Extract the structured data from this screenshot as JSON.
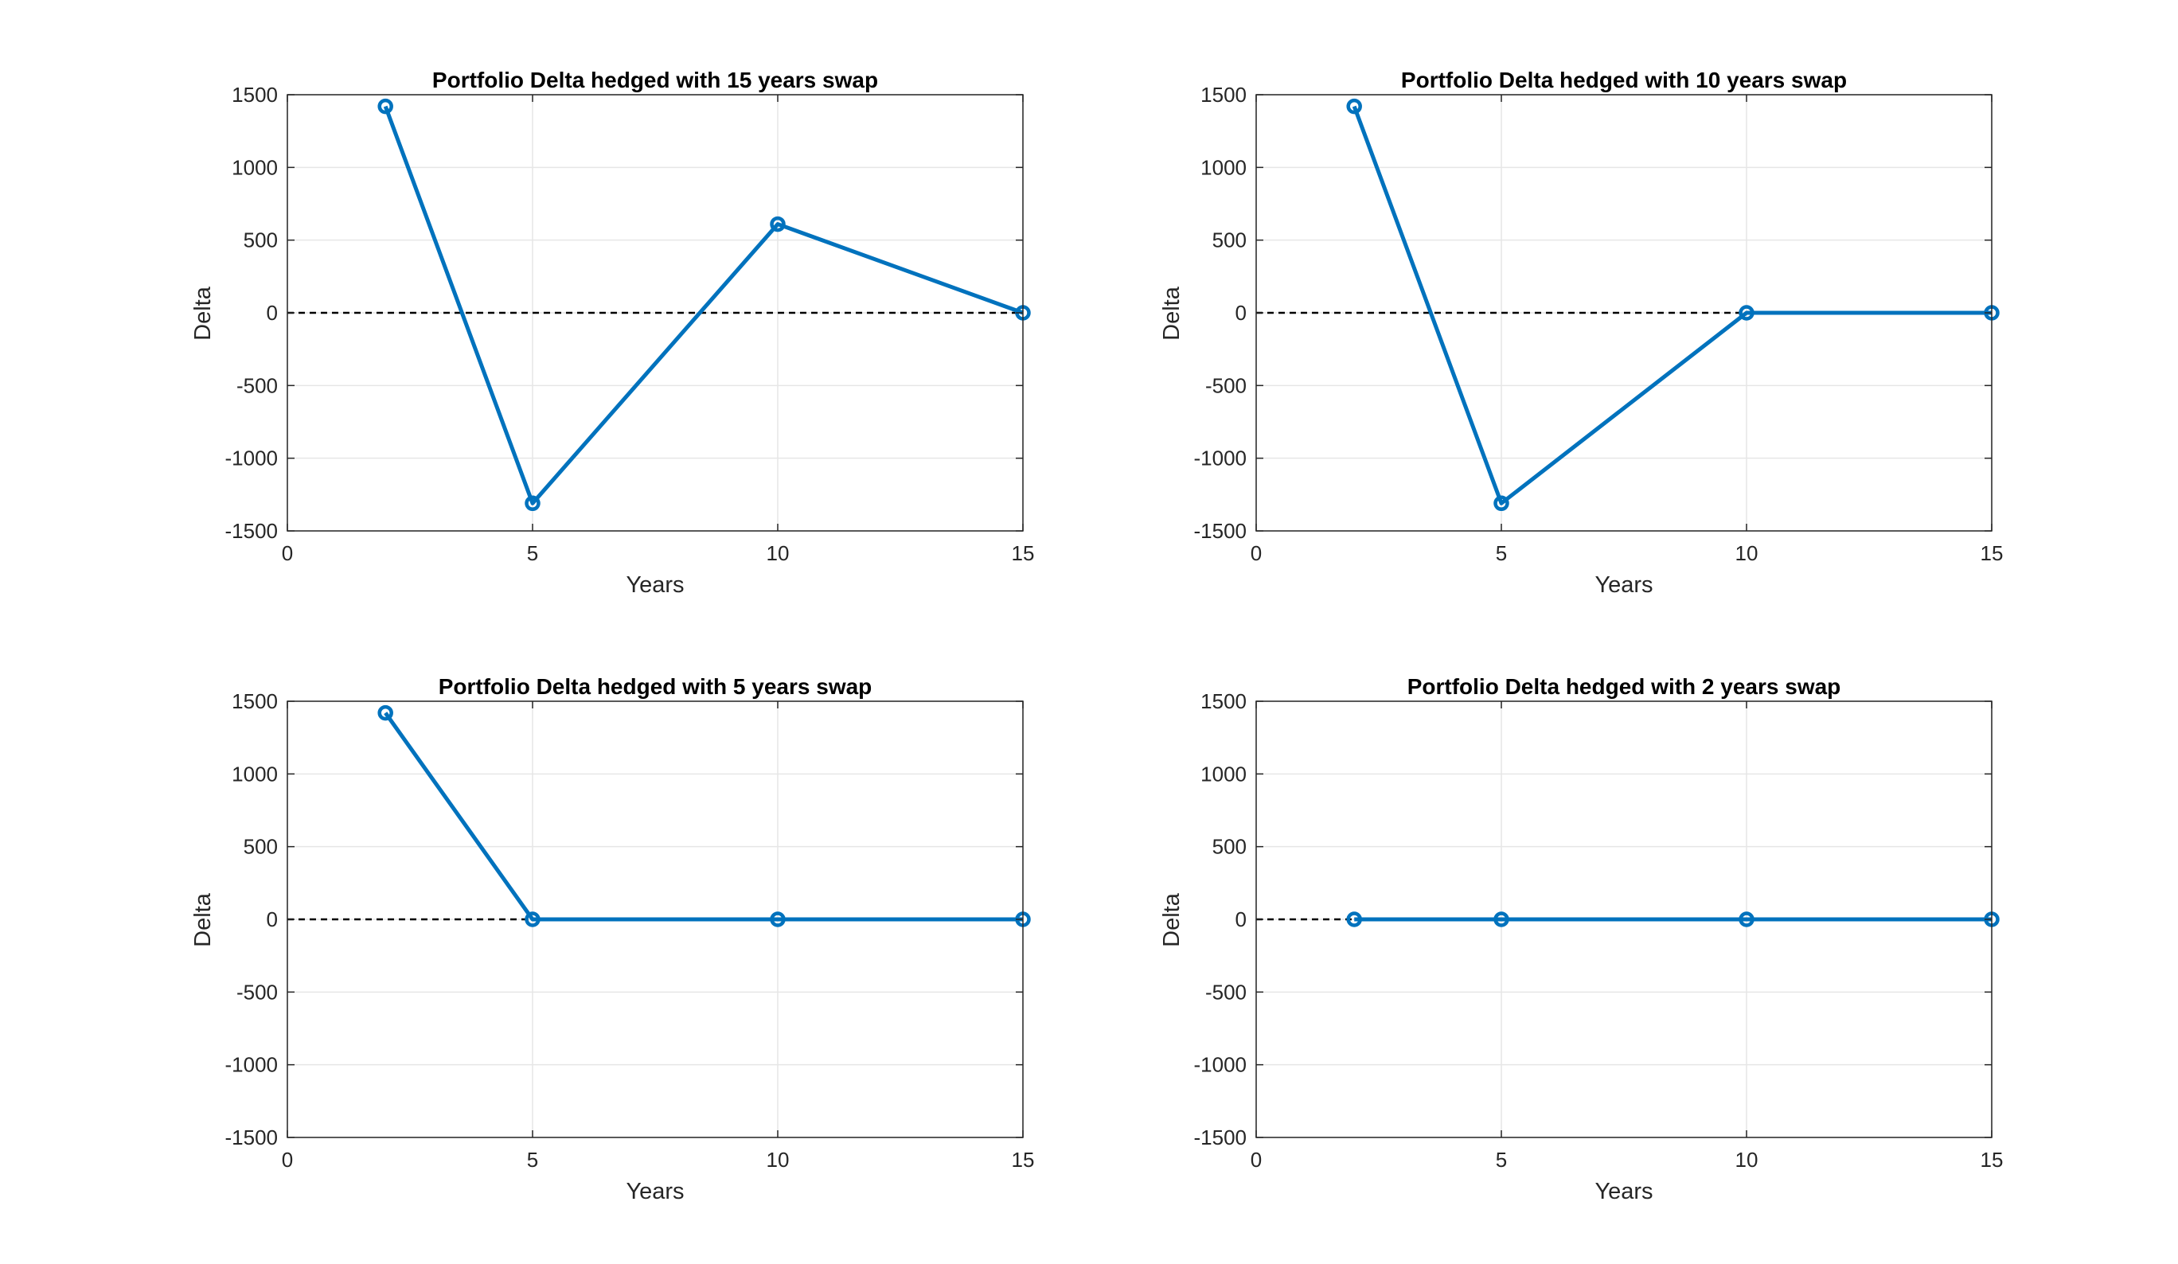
{
  "chart_data": [
    {
      "type": "line",
      "title": "Portfolio Delta hedged with 15 years swap",
      "xlabel": "Years",
      "ylabel": "Delta",
      "xlim": [
        0,
        15
      ],
      "ylim": [
        -1500,
        1500
      ],
      "xticks": [
        "0",
        "5",
        "10",
        "15"
      ],
      "yticks": [
        "1500",
        "1000",
        "500",
        "0",
        "-500",
        "-1000",
        "-1500"
      ],
      "grid": true,
      "reference_line": {
        "y": 0,
        "style": "dashed",
        "color": "#000000"
      },
      "series": [
        {
          "x": [
            2,
            5,
            10,
            15
          ],
          "y": [
            1420,
            -1310,
            610,
            0
          ]
        }
      ]
    },
    {
      "type": "line",
      "title": "Portfolio Delta hedged with 10 years swap",
      "xlabel": "Years",
      "ylabel": "Delta",
      "xlim": [
        0,
        15
      ],
      "ylim": [
        -1500,
        1500
      ],
      "xticks": [
        "0",
        "5",
        "10",
        "15"
      ],
      "yticks": [
        "1500",
        "1000",
        "500",
        "0",
        "-500",
        "-1000",
        "-1500"
      ],
      "grid": true,
      "reference_line": {
        "y": 0,
        "style": "dashed",
        "color": "#000000"
      },
      "series": [
        {
          "x": [
            2,
            5,
            10,
            15
          ],
          "y": [
            1420,
            -1310,
            0,
            0
          ]
        }
      ]
    },
    {
      "type": "line",
      "title": "Portfolio Delta hedged with 5 years swap",
      "xlabel": "Years",
      "ylabel": "Delta",
      "xlim": [
        0,
        15
      ],
      "ylim": [
        -1500,
        1500
      ],
      "xticks": [
        "0",
        "5",
        "10",
        "15"
      ],
      "yticks": [
        "1500",
        "1000",
        "500",
        "0",
        "-500",
        "-1000",
        "-1500"
      ],
      "grid": true,
      "reference_line": {
        "y": 0,
        "style": "dashed",
        "color": "#000000"
      },
      "series": [
        {
          "x": [
            2,
            5,
            10,
            15
          ],
          "y": [
            1420,
            0,
            0,
            0
          ]
        }
      ]
    },
    {
      "type": "line",
      "title": "Portfolio Delta hedged with 2 years swap",
      "xlabel": "Years",
      "ylabel": "Delta",
      "xlim": [
        0,
        15
      ],
      "ylim": [
        -1500,
        1500
      ],
      "xticks": [
        "0",
        "5",
        "10",
        "15"
      ],
      "yticks": [
        "1500",
        "1000",
        "500",
        "0",
        "-500",
        "-1000",
        "-1500"
      ],
      "grid": true,
      "reference_line": {
        "y": 0,
        "style": "dashed",
        "color": "#000000"
      },
      "series": [
        {
          "x": [
            2,
            5,
            10,
            15
          ],
          "y": [
            0,
            0,
            0,
            0
          ]
        }
      ]
    }
  ],
  "colors": {
    "series": "#0072BD",
    "grid": "#e6e6e6",
    "axis": "#262626",
    "reference_line": "#000000"
  }
}
